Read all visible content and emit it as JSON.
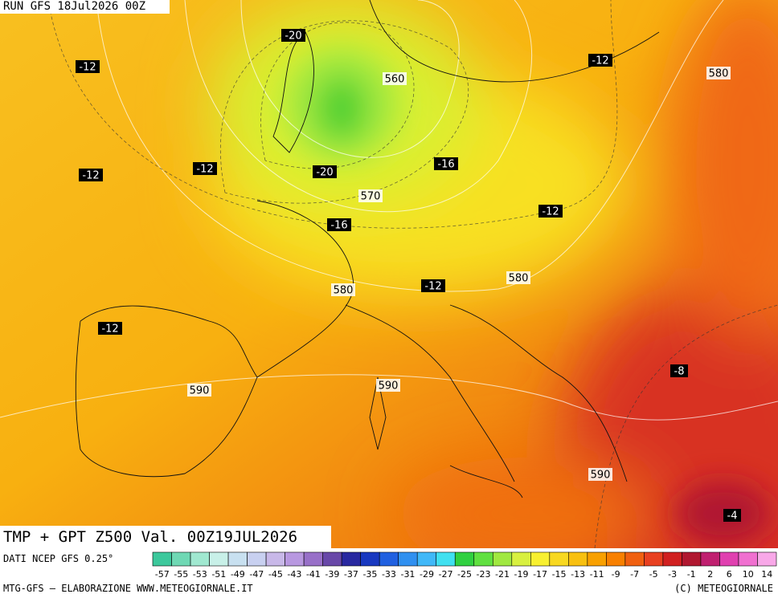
{
  "header": {
    "run": "RUN GFS 18Jul2026 00Z"
  },
  "title": "TMP + GPT Z500 Val. 00Z19JUL2026",
  "map_labels": [
    {
      "value": -20,
      "style": "temp"
    },
    {
      "value": -12,
      "style": "temp"
    },
    {
      "value": 560,
      "style": "height"
    },
    {
      "value": -12,
      "style": "temp"
    },
    {
      "value": 580,
      "style": "height"
    },
    {
      "value": -12,
      "style": "temp"
    },
    {
      "value": -12,
      "style": "temp"
    },
    {
      "value": -20,
      "style": "temp"
    },
    {
      "value": -16,
      "style": "temp"
    },
    {
      "value": 570,
      "style": "height"
    },
    {
      "value": -16,
      "style": "temp"
    },
    {
      "value": -12,
      "style": "temp"
    },
    {
      "value": 580,
      "style": "height"
    },
    {
      "value": -12,
      "style": "temp"
    },
    {
      "value": 580,
      "style": "height"
    },
    {
      "value": -12,
      "style": "temp"
    },
    {
      "value": -8,
      "style": "temp"
    },
    {
      "value": 590,
      "style": "height"
    },
    {
      "value": 590,
      "style": "height"
    },
    {
      "value": 590,
      "style": "height"
    },
    {
      "value": -4,
      "style": "temp"
    }
  ],
  "colorbar": {
    "source": "DATI NCEP GFS 0.25°",
    "ticks": [
      -57,
      -55,
      -53,
      -51,
      -49,
      -47,
      -45,
      -43,
      -41,
      -39,
      -37,
      -35,
      -33,
      -31,
      -29,
      -27,
      -25,
      -23,
      -21,
      -19,
      -17,
      -15,
      -13,
      -11,
      -9,
      -7,
      -5,
      -3,
      -1,
      2,
      6,
      10,
      14
    ],
    "colors": [
      "#3cc89c",
      "#6fd8b4",
      "#a0e8d0",
      "#c8f0e8",
      "#c8e0f0",
      "#c8d0f0",
      "#c8b8e8",
      "#b898e0",
      "#9870c8",
      "#6848a8",
      "#2828a0",
      "#1838c0",
      "#2060e0",
      "#3090f0",
      "#40b8f8",
      "#40e0f0",
      "#30d040",
      "#60e040",
      "#a0e840",
      "#d8f040",
      "#f8f030",
      "#f8d820",
      "#f8c010",
      "#f8a000",
      "#f88000",
      "#f06010",
      "#e84020",
      "#d02020",
      "#b01830",
      "#c02070",
      "#e040b0",
      "#f070d0",
      "#f8a8e8"
    ]
  },
  "footer": {
    "credit": "MTG-GFS – ELABORAZIONE WWW.METEOGIORNALE.IT",
    "copyright": "(C) METEOGIORNALE"
  }
}
